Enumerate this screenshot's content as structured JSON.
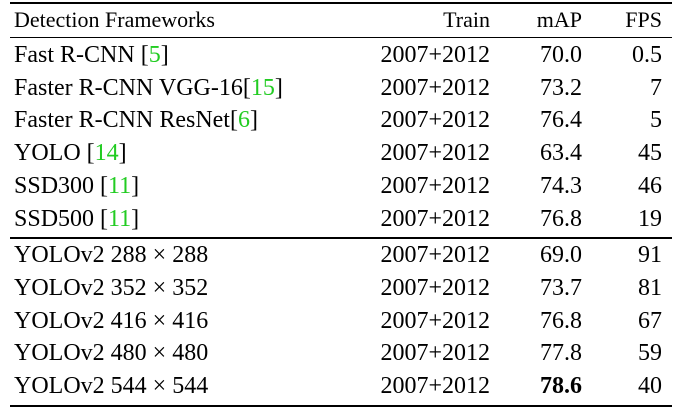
{
  "table": {
    "header": [
      "Detection Frameworks",
      "Train",
      "mAP",
      "FPS"
    ],
    "groups": [
      {
        "rows": [
          {
            "name": "Fast R-CNN ",
            "cite": {
              "open": "[",
              "ref": "5",
              "close": "]"
            },
            "train": "2007+2012",
            "map": "70.0",
            "fps": "0.5"
          },
          {
            "name": "Faster R-CNN VGG-16",
            "cite": {
              "open": "[",
              "ref": "15",
              "close": "]"
            },
            "train": "2007+2012",
            "map": "73.2",
            "fps": "7"
          },
          {
            "name": "Faster R-CNN ResNet",
            "cite": {
              "open": "[",
              "ref": "6",
              "close": "]"
            },
            "train": "2007+2012",
            "map": "76.4",
            "fps": "5"
          },
          {
            "name": "YOLO ",
            "cite": {
              "open": "[",
              "ref": "14",
              "close": "]"
            },
            "train": "2007+2012",
            "map": "63.4",
            "fps": "45"
          },
          {
            "name": "SSD300 ",
            "cite": {
              "open": "[",
              "ref": "11",
              "close": "]"
            },
            "train": "2007+2012",
            "map": "74.3",
            "fps": "46"
          },
          {
            "name": "SSD500 ",
            "cite": {
              "open": "[",
              "ref": "11",
              "close": "]"
            },
            "train": "2007+2012",
            "map": "76.8",
            "fps": "19"
          }
        ]
      },
      {
        "rows": [
          {
            "name": "YOLOv2 288 × 288",
            "train": "2007+2012",
            "map": "69.0",
            "fps": "91"
          },
          {
            "name": "YOLOv2 352 × 352",
            "train": "2007+2012",
            "map": "73.7",
            "fps": "81"
          },
          {
            "name": "YOLOv2 416 × 416",
            "train": "2007+2012",
            "map": "76.8",
            "fps": "67"
          },
          {
            "name": "YOLOv2 480 × 480",
            "train": "2007+2012",
            "map": "77.8",
            "fps": "59"
          },
          {
            "name": "YOLOv2 544 × 544",
            "train": "2007+2012",
            "map": "78.6",
            "fps": "40",
            "best": true
          }
        ]
      }
    ]
  }
}
